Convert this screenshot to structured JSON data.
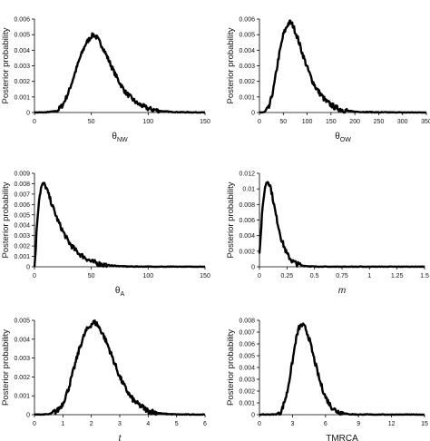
{
  "colors": {
    "line": "#000000",
    "background": "#ffffff"
  },
  "chart_data": [
    {
      "type": "line",
      "ylabel": "Posterior probability",
      "xlabel": "θ",
      "xlabel_sub": "NW",
      "xlabel_italic": false,
      "xlim": [
        0,
        150
      ],
      "ylim": [
        0,
        0.006
      ],
      "xticks": [
        "0",
        "50",
        "100",
        "150"
      ],
      "yticks": [
        "0",
        "0.001",
        "0.002",
        "0.003",
        "0.004",
        "0.005",
        "0.006"
      ],
      "x": [
        0,
        10,
        20,
        25,
        30,
        35,
        40,
        45,
        50,
        52,
        55,
        60,
        65,
        70,
        75,
        80,
        90,
        100,
        110,
        120,
        130,
        140,
        150
      ],
      "y": [
        0,
        1e-05,
        0.0001,
        0.0005,
        0.0013,
        0.0024,
        0.0035,
        0.0044,
        0.0049,
        0.005,
        0.0048,
        0.0042,
        0.0034,
        0.0026,
        0.0019,
        0.0013,
        0.0006,
        0.00025,
        0.0001,
        4e-05,
        2e-05,
        1e-05,
        0
      ]
    },
    {
      "type": "line",
      "ylabel": "Posterior probability",
      "xlabel": "θ",
      "xlabel_sub": "OW",
      "xlabel_italic": false,
      "xlim": [
        0,
        350
      ],
      "ylim": [
        0,
        0.006
      ],
      "xticks": [
        "0",
        "50",
        "100",
        "150",
        "200",
        "250",
        "300",
        "350"
      ],
      "yticks": [
        "0",
        "0.001",
        "0.002",
        "0.003",
        "0.004",
        "0.005",
        "0.006"
      ],
      "x": [
        0,
        10,
        20,
        30,
        40,
        50,
        60,
        65,
        70,
        80,
        90,
        100,
        110,
        120,
        140,
        160,
        180,
        200,
        250,
        300,
        350
      ],
      "y": [
        0,
        2e-05,
        0.0003,
        0.0016,
        0.0035,
        0.005,
        0.0057,
        0.0058,
        0.0056,
        0.0048,
        0.0038,
        0.0029,
        0.0021,
        0.0015,
        0.0007,
        0.0003,
        0.00013,
        5e-05,
        1e-05,
        0,
        0
      ]
    },
    {
      "type": "line",
      "ylabel": "Posterior probability",
      "xlabel": "θ",
      "xlabel_sub": "A",
      "xlabel_italic": false,
      "xlim": [
        0,
        150
      ],
      "ylim": [
        0,
        0.009
      ],
      "xticks": [
        "0",
        "50",
        "100",
        "150"
      ],
      "yticks": [
        "0",
        "0.001",
        "0.002",
        "0.003",
        "0.004",
        "0.005",
        "0.006",
        "0.007",
        "0.008",
        "0.009"
      ],
      "x": [
        0,
        1,
        2,
        4,
        6,
        8,
        10,
        12,
        15,
        20,
        25,
        30,
        35,
        40,
        50,
        60,
        70,
        80,
        100,
        120,
        150
      ],
      "y": [
        0,
        0.0015,
        0.0038,
        0.0065,
        0.0077,
        0.008,
        0.0077,
        0.0071,
        0.0061,
        0.0046,
        0.0034,
        0.0024,
        0.0017,
        0.0012,
        0.0005,
        0.0002,
        0.0001,
        3e-05,
        1e-05,
        0,
        0
      ]
    },
    {
      "type": "line",
      "ylabel": "Posterior probability",
      "xlabel": "m",
      "xlabel_sub": "",
      "xlabel_italic": true,
      "xlim": [
        0,
        1.5
      ],
      "ylim": [
        0,
        0.012
      ],
      "xticks": [
        "0",
        "0.25",
        "0.5",
        "0.75",
        "1",
        "1.25",
        "1.5"
      ],
      "yticks": [
        "0",
        "0.002",
        "0.004",
        "0.006",
        "0.008",
        "0.01",
        "0.012"
      ],
      "x": [
        0,
        0.01,
        0.02,
        0.04,
        0.06,
        0.08,
        0.1,
        0.12,
        0.15,
        0.2,
        0.25,
        0.3,
        0.35,
        0.4,
        0.5,
        0.6,
        0.75,
        1.0,
        1.25,
        1.5
      ],
      "y": [
        0.002,
        0.0035,
        0.006,
        0.0092,
        0.0108,
        0.011,
        0.0103,
        0.0089,
        0.0066,
        0.0035,
        0.0016,
        0.0007,
        0.0003,
        0.00012,
        2e-05,
        0,
        0,
        0,
        0,
        0
      ]
    },
    {
      "type": "line",
      "ylabel": "Posterior probability",
      "xlabel": "t",
      "xlabel_sub": "",
      "xlabel_italic": true,
      "xlim": [
        0,
        6
      ],
      "ylim": [
        0,
        0.005
      ],
      "xticks": [
        "0",
        "1",
        "2",
        "3",
        "4",
        "5",
        "6"
      ],
      "yticks": [
        "0",
        "0.001",
        "0.002",
        "0.003",
        "0.004",
        "0.005"
      ],
      "x": [
        0,
        0.5,
        0.8,
        1.0,
        1.2,
        1.4,
        1.6,
        1.8,
        2.0,
        2.1,
        2.2,
        2.4,
        2.6,
        2.8,
        3.0,
        3.2,
        3.4,
        3.6,
        4.0,
        4.5,
        5.0,
        6.0
      ],
      "y": [
        0,
        2e-05,
        0.0002,
        0.0006,
        0.0014,
        0.0025,
        0.0036,
        0.0044,
        0.0048,
        0.0049,
        0.0048,
        0.0043,
        0.0036,
        0.0028,
        0.002,
        0.0014,
        0.0009,
        0.0006,
        0.0002,
        5e-05,
        1e-05,
        0
      ]
    },
    {
      "type": "line",
      "ylabel": "Posterior probability",
      "xlabel": "TMRCA",
      "xlabel_sub": "",
      "xlabel_italic": false,
      "xlim": [
        0,
        15
      ],
      "ylim": [
        0,
        0.008
      ],
      "xticks": [
        "0",
        "3",
        "6",
        "9",
        "12",
        "15"
      ],
      "yticks": [
        "0",
        "0.001",
        "0.002",
        "0.003",
        "0.004",
        "0.005",
        "0.006",
        "0.007",
        "0.008"
      ],
      "x": [
        0,
        1.5,
        2.0,
        2.5,
        3.0,
        3.3,
        3.6,
        3.9,
        4.2,
        4.5,
        5.0,
        5.5,
        6.0,
        6.5,
        7.0,
        8.0,
        9.0,
        12.0,
        15.0
      ],
      "y": [
        0,
        2e-05,
        0.0003,
        0.0018,
        0.0045,
        0.0063,
        0.0074,
        0.0076,
        0.0073,
        0.0065,
        0.0046,
        0.0028,
        0.0015,
        0.0007,
        0.0003,
        5e-05,
        1e-05,
        0,
        0
      ]
    }
  ]
}
